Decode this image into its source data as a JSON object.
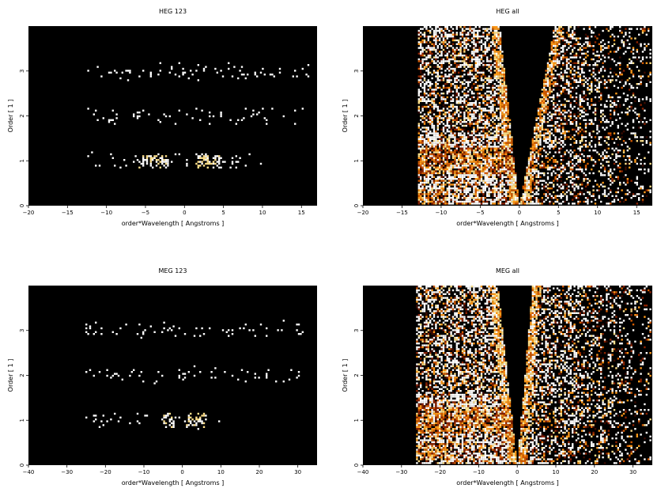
{
  "chart_data": [
    {
      "type": "heatmap",
      "title": "HEG 123",
      "xlabel": "order*Wavelength [ Angstroms ]",
      "ylabel": "Order [ 1 ]",
      "xlim": [
        -20,
        17
      ],
      "ylim": [
        0,
        4
      ],
      "xticks": [
        -20,
        -15,
        -10,
        -5,
        0,
        5,
        10,
        15
      ],
      "yticks": [
        0,
        1,
        2,
        3
      ],
      "background": "#000000",
      "colormap": [
        "#3a0a00",
        "#8b2200",
        "#d25a00",
        "#ff9a1a",
        "#ffe08a",
        "#ffffff"
      ],
      "pattern": "orders",
      "bands": [
        {
          "order": 1,
          "x_range": [
            -12.5,
            10
          ]
        },
        {
          "order": 2,
          "x_range": [
            -12.5,
            16
          ]
        },
        {
          "order": 3,
          "x_range": [
            -12.5,
            16
          ]
        }
      ],
      "bright_regions": [
        {
          "order": 1,
          "x_range": [
            -6,
            -2
          ]
        },
        {
          "order": 1,
          "x_range": [
            1.5,
            4.5
          ]
        }
      ],
      "density": 0.1
    },
    {
      "type": "heatmap",
      "title": "HEG all",
      "xlabel": "order*Wavelength [ Angstroms ]",
      "ylabel": "Order [ 1 ]",
      "xlim": [
        -20,
        17
      ],
      "ylim": [
        0,
        4
      ],
      "xticks": [
        -20,
        -15,
        -10,
        -5,
        0,
        5,
        10,
        15
      ],
      "yticks": [
        0,
        1,
        2,
        3
      ],
      "background": "#000000",
      "colormap": [
        "#3a0a00",
        "#8b2200",
        "#d25a00",
        "#ff9a1a",
        "#ffe08a",
        "#ffffff"
      ],
      "pattern": "full",
      "data_x_range": [
        -13,
        17
      ],
      "wedge_edge_x_at_top": [
        -2.5,
        4.5
      ],
      "bright_regions": [
        {
          "order": 1,
          "x_range": [
            -6,
            -2
          ]
        },
        {
          "order": 1,
          "x_range": [
            1,
            5
          ]
        },
        {
          "order": 0.2,
          "x_range": [
            -13,
            -9
          ]
        }
      ],
      "density": 0.55
    },
    {
      "type": "heatmap",
      "title": "MEG 123",
      "xlabel": "order*Wavelength [ Angstroms ]",
      "ylabel": "Order [ 1 ]",
      "xlim": [
        -40,
        35
      ],
      "ylim": [
        0,
        4
      ],
      "xticks": [
        -40,
        -30,
        -20,
        -10,
        0,
        10,
        20,
        30
      ],
      "yticks": [
        0,
        1,
        2,
        3
      ],
      "background": "#000000",
      "colormap": [
        "#3a0a00",
        "#8b2200",
        "#d25a00",
        "#ff9a1a",
        "#ffe08a",
        "#ffffff"
      ],
      "pattern": "orders",
      "bands": [
        {
          "order": 1,
          "x_range": [
            -25,
            10
          ]
        },
        {
          "order": 2,
          "x_range": [
            -25,
            31
          ]
        },
        {
          "order": 3,
          "x_range": [
            -25,
            32
          ]
        }
      ],
      "bright_regions": [
        {
          "order": 1,
          "x_range": [
            -5,
            -2
          ]
        },
        {
          "order": 1,
          "x_range": [
            1,
            6
          ]
        }
      ],
      "density": 0.08
    },
    {
      "type": "heatmap",
      "title": "MEG all",
      "xlabel": "order*Wavelength [ Angstroms ]",
      "ylabel": "Order [ 1 ]",
      "xlim": [
        -40,
        35
      ],
      "ylim": [
        0,
        4
      ],
      "xticks": [
        -40,
        -30,
        -20,
        -10,
        0,
        10,
        20,
        30
      ],
      "yticks": [
        0,
        1,
        2,
        3
      ],
      "background": "#000000",
      "colormap": [
        "#3a0a00",
        "#8b2200",
        "#d25a00",
        "#ff9a1a",
        "#ffe08a",
        "#ffffff"
      ],
      "pattern": "full",
      "data_x_range": [
        -26,
        35
      ],
      "wedge_edge_x_at_top": [
        -5,
        4
      ],
      "bright_regions": [
        {
          "order": 1,
          "x_range": [
            -12,
            -3
          ]
        },
        {
          "order": 1,
          "x_range": [
            1,
            10
          ]
        },
        {
          "order": 0.3,
          "x_range": [
            -26,
            -18
          ]
        }
      ],
      "density": 0.55
    }
  ]
}
